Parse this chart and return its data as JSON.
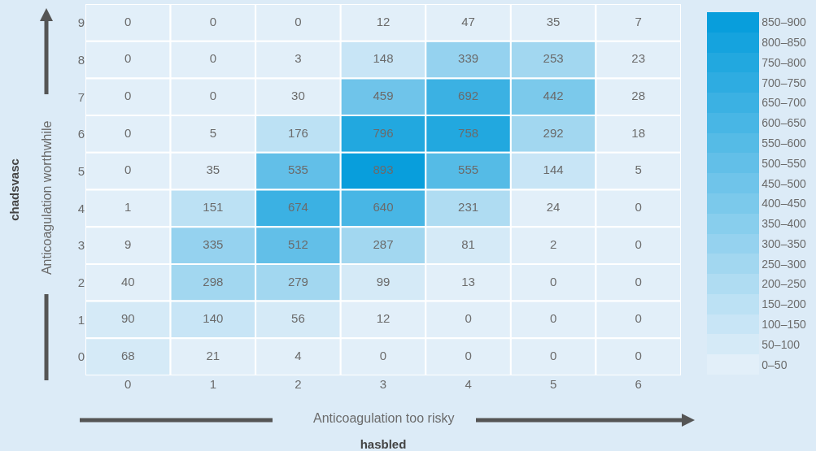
{
  "chart_data": {
    "type": "heatmap",
    "xlabel": "hasbled",
    "ylabel": "chadsvasc",
    "annotations": [
      "Anticoagulation too risky",
      "Anticoagulation worthwhile"
    ],
    "categories": [
      "0",
      "1",
      "2",
      "3",
      "4",
      "5",
      "6"
    ],
    "y_categories": [
      "9",
      "8",
      "7",
      "6",
      "5",
      "4",
      "3",
      "2",
      "1",
      "0"
    ],
    "cells": [
      [
        0,
        0,
        0,
        12,
        47,
        35,
        7
      ],
      [
        0,
        0,
        3,
        148,
        339,
        253,
        23
      ],
      [
        0,
        0,
        30,
        459,
        692,
        442,
        28
      ],
      [
        0,
        5,
        176,
        796,
        758,
        292,
        18
      ],
      [
        0,
        35,
        535,
        893,
        555,
        144,
        5
      ],
      [
        1,
        151,
        674,
        640,
        231,
        24,
        0
      ],
      [
        9,
        335,
        512,
        287,
        81,
        2,
        0
      ],
      [
        40,
        298,
        279,
        99,
        13,
        0,
        0
      ],
      [
        90,
        140,
        56,
        12,
        0,
        0,
        0
      ],
      [
        68,
        21,
        4,
        0,
        0,
        0,
        0
      ]
    ],
    "clim": [
      0,
      900
    ],
    "cticks": [
      {
        "value": 25,
        "label": "0–50"
      },
      {
        "value": 75,
        "label": "50–100"
      },
      {
        "value": 125,
        "label": "100–150"
      },
      {
        "value": 175,
        "label": "150–200"
      },
      {
        "value": 225,
        "label": "200–250"
      },
      {
        "value": 275,
        "label": "250–300"
      },
      {
        "value": 325,
        "label": "300–350"
      },
      {
        "value": 375,
        "label": "350–400"
      },
      {
        "value": 425,
        "label": "400–450"
      },
      {
        "value": 475,
        "label": "450–500"
      },
      {
        "value": 525,
        "label": "500–550"
      },
      {
        "value": 575,
        "label": "550–600"
      },
      {
        "value": 625,
        "label": "600–650"
      },
      {
        "value": 675,
        "label": "650–700"
      },
      {
        "value": 725,
        "label": "700–750"
      },
      {
        "value": 775,
        "label": "750–800"
      },
      {
        "value": 825,
        "label": "800–850"
      },
      {
        "value": 875,
        "label": "850–900"
      }
    ],
    "data_labels": true
  }
}
